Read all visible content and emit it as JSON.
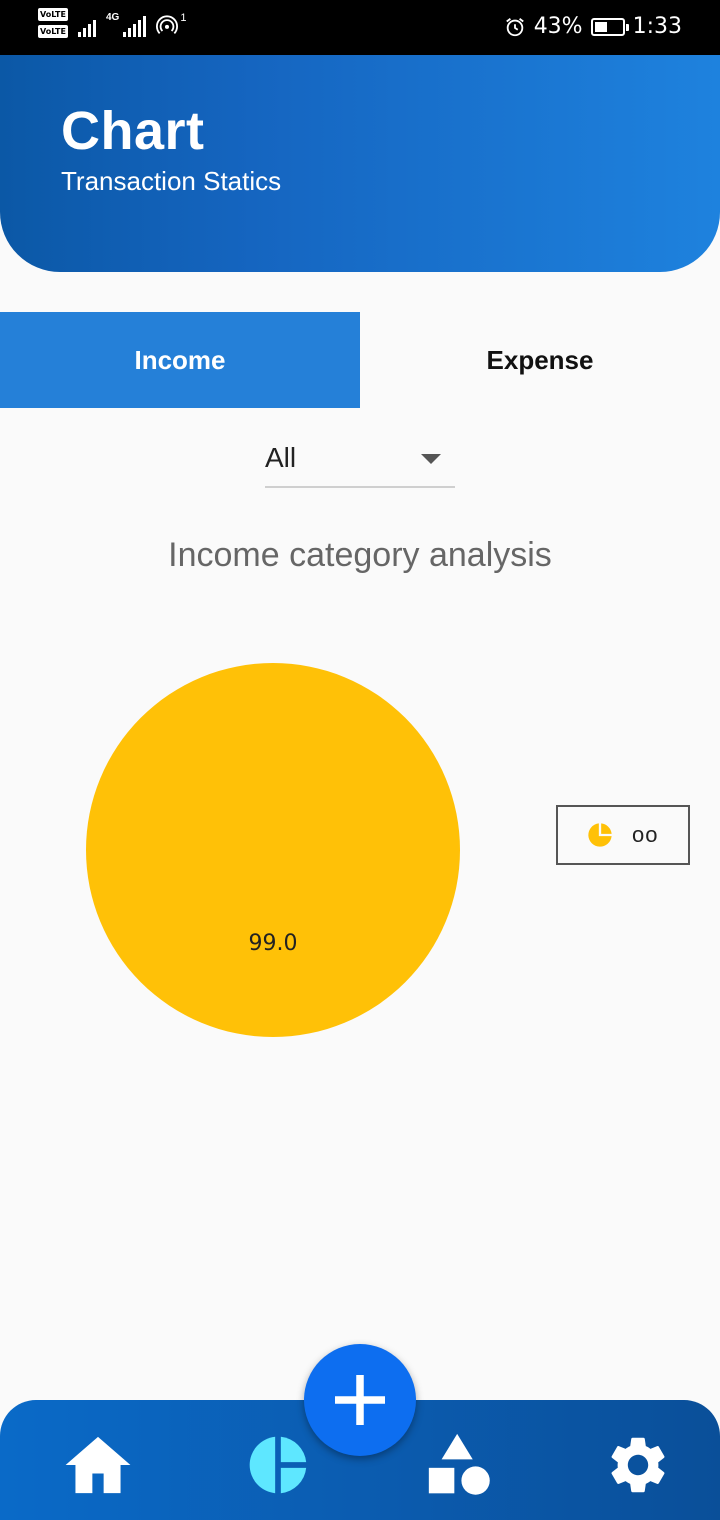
{
  "status_bar": {
    "volte1": "VoLTE",
    "volte2": "VoLTE",
    "network": "4G",
    "hotspot_count": "1",
    "battery": "43%",
    "time": "1:33"
  },
  "header": {
    "title": "Chart",
    "subtitle": "Transaction Statics"
  },
  "tabs": [
    {
      "label": "Income",
      "active": true
    },
    {
      "label": "Expense",
      "active": false
    }
  ],
  "filter": {
    "selected": "All"
  },
  "chart_data": {
    "type": "pie",
    "title": "Income category analysis",
    "slices": [
      {
        "label": "oo",
        "value": 99.0,
        "color": "#ffc107"
      }
    ],
    "legend_position": "right"
  },
  "bottom_nav": {
    "items": [
      "home-icon",
      "chart-icon",
      "add-icon",
      "categories-icon",
      "settings-icon"
    ],
    "active": "chart-icon",
    "active_color": "#5ee7ff"
  },
  "colors": {
    "primary": "#1565c0",
    "tab_active": "#2580d8",
    "fab": "#0d6ef0"
  }
}
